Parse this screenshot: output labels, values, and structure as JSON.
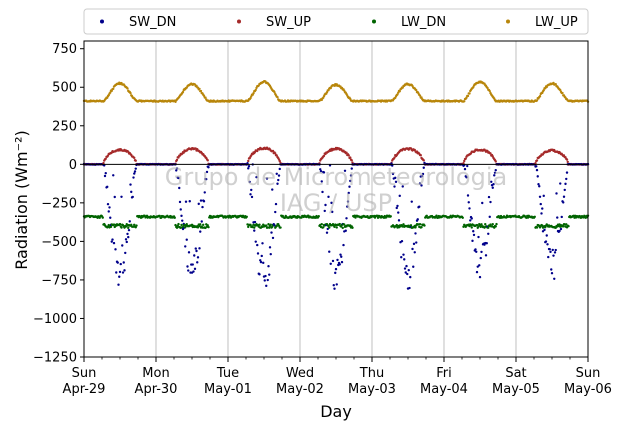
{
  "chart_data": {
    "type": "scatter",
    "xlabel": "Day",
    "ylabel": "Radiation (Wm⁻²)",
    "xlim": [
      0,
      7
    ],
    "ylim": [
      -1250,
      800
    ],
    "yticks": [
      750,
      500,
      250,
      0,
      -250,
      -500,
      -750,
      -1000,
      -1250
    ],
    "ytick_labels": [
      "750",
      "500",
      "250",
      "0",
      "−250",
      "−500",
      "−750",
      "−1000",
      "−1250"
    ],
    "xticks": [
      {
        "x": 0,
        "line1": "Sun",
        "line2": "Apr-29"
      },
      {
        "x": 1,
        "line1": "Mon",
        "line2": "Apr-30"
      },
      {
        "x": 2,
        "line1": "Tue",
        "line2": "May-01"
      },
      {
        "x": 3,
        "line1": "Wed",
        "line2": "May-02"
      },
      {
        "x": 4,
        "line1": "Thu",
        "line2": "May-03"
      },
      {
        "x": 5,
        "line1": "Fri",
        "line2": "May-04"
      },
      {
        "x": 6,
        "line1": "Sat",
        "line2": "May-05"
      },
      {
        "x": 7,
        "line1": "Sun",
        "line2": "May-06"
      }
    ],
    "grid": "vertical",
    "legend_placement": "top, above plot, 4 columns",
    "zero_line": true,
    "watermark": [
      "Grupo de Micrometeorologia",
      "IAG / USP"
    ],
    "series": [
      {
        "name": "SW_DN",
        "color": "#00008b",
        "daily_min": [
          -770,
          -770,
          -850,
          -790,
          -800,
          -730,
          -740
        ]
      },
      {
        "name": "SW_UP",
        "color": "#a52a2a",
        "daily_max": [
          95,
          100,
          105,
          100,
          100,
          95,
          90
        ]
      },
      {
        "name": "LW_DN",
        "color": "#006400",
        "night_value": -340,
        "day_value": -400
      },
      {
        "name": "LW_UP",
        "color": "#b8860b",
        "night_value": 410,
        "daily_peak": [
          525,
          520,
          535,
          515,
          520,
          535,
          525
        ]
      }
    ]
  }
}
